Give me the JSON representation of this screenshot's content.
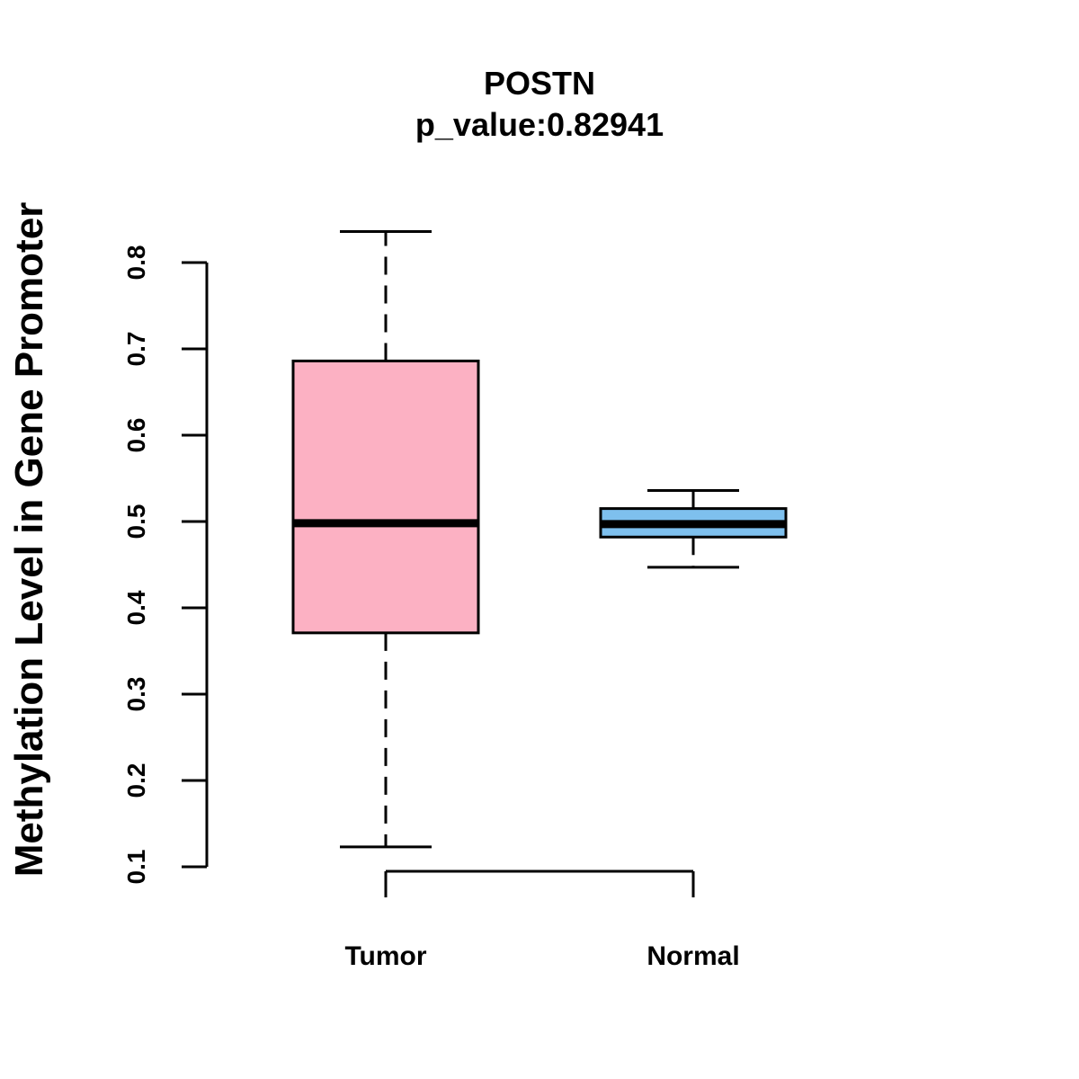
{
  "chart_data": {
    "type": "boxplot",
    "title": "POSTN",
    "subtitle": "p_value:0.82941",
    "xlabel": "",
    "ylabel": "Methylation Level in Gene Promoter",
    "ylim": [
      0.1,
      0.8
    ],
    "y_ticks": [
      "0.1",
      "0.2",
      "0.3",
      "0.4",
      "0.5",
      "0.6",
      "0.7",
      "0.8"
    ],
    "grid": false,
    "categories": [
      "Tumor",
      "Normal"
    ],
    "series": [
      {
        "name": "Tumor",
        "whisker_low": 0.123,
        "q1": 0.371,
        "median": 0.498,
        "q3": 0.686,
        "whisker_high": 0.836,
        "color": "#FCB1C3"
      },
      {
        "name": "Normal",
        "whisker_low": 0.447,
        "q1": 0.482,
        "median": 0.497,
        "q3": 0.515,
        "whisker_high": 0.536,
        "color": "#7EC0EE"
      }
    ]
  }
}
